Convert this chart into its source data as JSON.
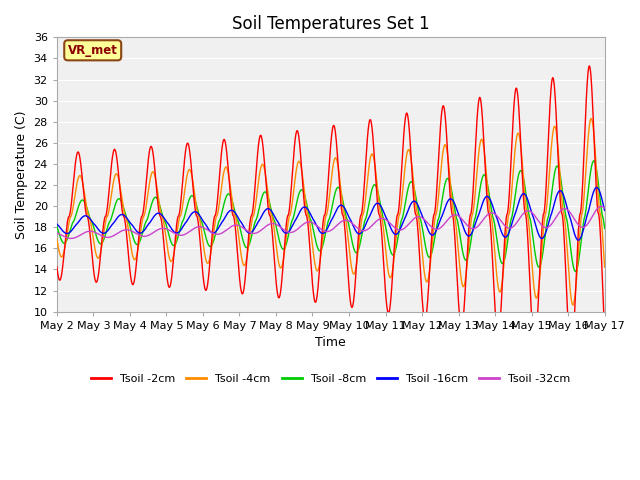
{
  "title": "Soil Temperatures Set 1",
  "xlabel": "Time",
  "ylabel": "Soil Temperature (C)",
  "ylim": [
    10,
    36
  ],
  "x_tick_labels": [
    "May 2",
    "May 3",
    "May 4",
    "May 5",
    "May 6",
    "May 7",
    "May 8",
    "May 9",
    "May 10",
    "May 11",
    "May 12",
    "May 13",
    "May 14",
    "May 15",
    "May 16",
    "May 17"
  ],
  "series_labels": [
    "Tsoil -2cm",
    "Tsoil -4cm",
    "Tsoil -8cm",
    "Tsoil -16cm",
    "Tsoil -32cm"
  ],
  "series_colors": [
    "#ff0000",
    "#ff8c00",
    "#00cc00",
    "#0000ff",
    "#cc44cc"
  ],
  "annotation_text": "VR_met",
  "annotation_bg": "#ffff99",
  "annotation_border": "#8b4513",
  "plot_bg": "#f0f0f0",
  "fig_bg": "#ffffff",
  "title_fontsize": 12,
  "axis_label_fontsize": 9,
  "tick_fontsize": 8
}
